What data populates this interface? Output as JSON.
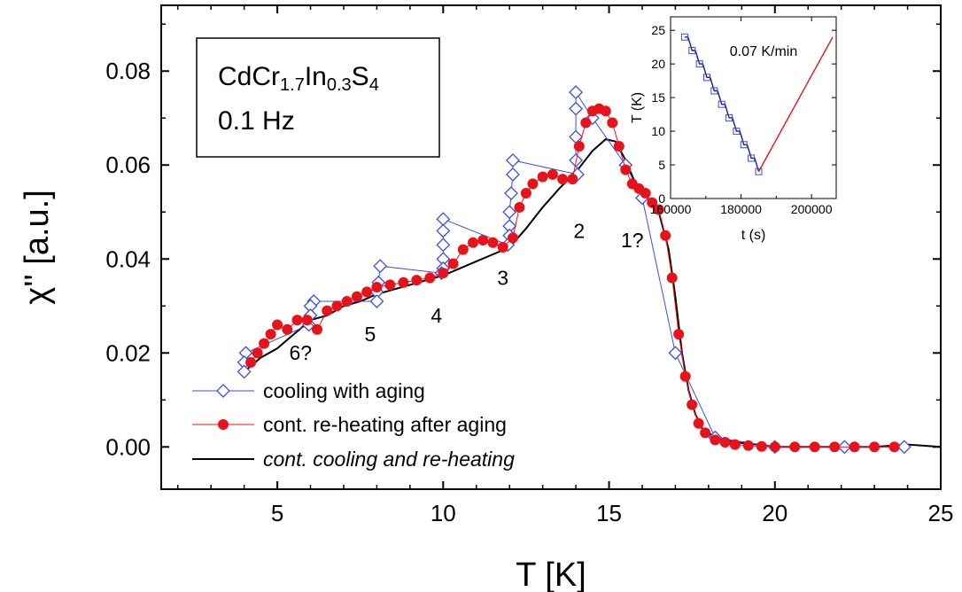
{
  "colors": {
    "cooling": "#3a4fe0",
    "reheating": "#e8121a",
    "continuous": "#000000",
    "inset_cooling": "#1a1a8a",
    "inset_heating": "#e8121a"
  },
  "sample_box": {
    "formula_parts": [
      [
        "CdCr",
        ""
      ],
      [
        "1.7",
        "sub"
      ],
      [
        "In",
        ""
      ],
      [
        "0.3",
        "sub"
      ],
      [
        "S",
        ""
      ],
      [
        "4",
        "sub"
      ]
    ],
    "frequency": "0.1 Hz"
  },
  "chart_data": {
    "type": "line",
    "xlabel": "T [K]",
    "ylabel": "χ'' [a.u.]",
    "xlim": [
      1.5,
      25
    ],
    "ylim": [
      -0.009,
      0.094
    ],
    "x_ticks": [
      5,
      10,
      15,
      20,
      25
    ],
    "y_ticks": [
      0.0,
      0.02,
      0.04,
      0.06,
      0.08
    ],
    "y_tick_labels": [
      "0.00",
      "0.02",
      "0.04",
      "0.06",
      "0.08"
    ],
    "legend_position": "bottom-left",
    "series": [
      {
        "name": "cooling with aging",
        "style": "line-open-diamond",
        "points": [
          [
            23.9,
            0.0
          ],
          [
            22.1,
            0.0
          ],
          [
            20.0,
            0.0
          ],
          [
            18.2,
            0.002
          ],
          [
            17.0,
            0.02
          ],
          [
            16.0,
            0.053
          ],
          [
            15.5,
            0.06
          ],
          [
            14.5,
            0.07
          ],
          [
            14.0,
            0.0755
          ],
          [
            14.0,
            0.072
          ],
          [
            14.0,
            0.066
          ],
          [
            14.0,
            0.061
          ],
          [
            14.05,
            0.058
          ],
          [
            12.1,
            0.061
          ],
          [
            12.1,
            0.058
          ],
          [
            12.05,
            0.054
          ],
          [
            12.0,
            0.05
          ],
          [
            12.0,
            0.047
          ],
          [
            12.0,
            0.045
          ],
          [
            11.95,
            0.043
          ],
          [
            10.0,
            0.0485
          ],
          [
            10.0,
            0.046
          ],
          [
            10.0,
            0.043
          ],
          [
            10.0,
            0.04
          ],
          [
            10.0,
            0.038
          ],
          [
            9.95,
            0.037
          ],
          [
            8.1,
            0.0385
          ],
          [
            8.05,
            0.035
          ],
          [
            8.0,
            0.033
          ],
          [
            8.0,
            0.031
          ],
          [
            6.1,
            0.031
          ],
          [
            6.0,
            0.03
          ],
          [
            6.0,
            0.028
          ],
          [
            5.95,
            0.026
          ],
          [
            4.05,
            0.02
          ],
          [
            4.0,
            0.018
          ],
          [
            4.0,
            0.016
          ]
        ]
      },
      {
        "name": "cont. re-heating after aging",
        "style": "line-filled-circle",
        "points": [
          [
            4.2,
            0.018
          ],
          [
            4.4,
            0.02
          ],
          [
            4.6,
            0.022
          ],
          [
            4.8,
            0.024
          ],
          [
            5.0,
            0.026
          ],
          [
            5.3,
            0.025
          ],
          [
            5.6,
            0.027
          ],
          [
            5.9,
            0.027
          ],
          [
            6.2,
            0.025
          ],
          [
            6.5,
            0.029
          ],
          [
            6.8,
            0.03
          ],
          [
            7.1,
            0.031
          ],
          [
            7.4,
            0.032
          ],
          [
            7.7,
            0.033
          ],
          [
            8.0,
            0.034
          ],
          [
            8.4,
            0.0345
          ],
          [
            8.8,
            0.035
          ],
          [
            9.2,
            0.0355
          ],
          [
            9.6,
            0.036
          ],
          [
            10.0,
            0.037
          ],
          [
            10.3,
            0.039
          ],
          [
            10.6,
            0.042
          ],
          [
            10.9,
            0.0435
          ],
          [
            11.2,
            0.044
          ],
          [
            11.5,
            0.0435
          ],
          [
            11.8,
            0.0425
          ],
          [
            12.1,
            0.0445
          ],
          [
            12.3,
            0.051
          ],
          [
            12.5,
            0.054
          ],
          [
            12.7,
            0.056
          ],
          [
            13.0,
            0.0575
          ],
          [
            13.3,
            0.058
          ],
          [
            13.6,
            0.057
          ],
          [
            13.9,
            0.057
          ],
          [
            14.1,
            0.064
          ],
          [
            14.3,
            0.069
          ],
          [
            14.5,
            0.0715
          ],
          [
            14.7,
            0.072
          ],
          [
            14.9,
            0.0715
          ],
          [
            15.1,
            0.069
          ],
          [
            15.3,
            0.064
          ],
          [
            15.5,
            0.059
          ],
          [
            15.7,
            0.056
          ],
          [
            15.9,
            0.055
          ],
          [
            16.1,
            0.054
          ],
          [
            16.3,
            0.052
          ],
          [
            16.5,
            0.0505
          ],
          [
            16.7,
            0.045
          ],
          [
            16.9,
            0.036
          ],
          [
            17.1,
            0.024
          ],
          [
            17.3,
            0.015
          ],
          [
            17.5,
            0.009
          ],
          [
            17.7,
            0.005
          ],
          [
            17.9,
            0.003
          ],
          [
            18.2,
            0.0015
          ],
          [
            18.5,
            0.001
          ],
          [
            18.8,
            0.0005
          ],
          [
            19.2,
            0.0003
          ],
          [
            19.6,
            0.0001
          ],
          [
            20.0,
            0.0
          ],
          [
            20.6,
            0.0
          ],
          [
            21.2,
            0.0
          ],
          [
            21.8,
            0.0
          ],
          [
            22.4,
            0.0
          ],
          [
            23.0,
            0.0
          ],
          [
            23.6,
            0.0
          ]
        ]
      },
      {
        "name": "cont. cooling and re-heating",
        "style": "line",
        "points": [
          [
            4.0,
            0.016
          ],
          [
            4.5,
            0.019
          ],
          [
            5.0,
            0.021
          ],
          [
            5.5,
            0.024
          ],
          [
            6.0,
            0.027
          ],
          [
            6.5,
            0.028
          ],
          [
            7.0,
            0.03
          ],
          [
            7.5,
            0.031
          ],
          [
            8.0,
            0.0325
          ],
          [
            8.5,
            0.0335
          ],
          [
            9.0,
            0.0345
          ],
          [
            9.5,
            0.0355
          ],
          [
            10.0,
            0.0365
          ],
          [
            10.5,
            0.038
          ],
          [
            11.0,
            0.0395
          ],
          [
            11.5,
            0.041
          ],
          [
            12.0,
            0.0425
          ],
          [
            12.5,
            0.0465
          ],
          [
            13.0,
            0.051
          ],
          [
            13.5,
            0.055
          ],
          [
            14.0,
            0.0585
          ],
          [
            14.5,
            0.063
          ],
          [
            14.9,
            0.0655
          ],
          [
            15.2,
            0.065
          ],
          [
            15.5,
            0.061
          ],
          [
            15.8,
            0.056
          ],
          [
            16.2,
            0.0525
          ],
          [
            16.5,
            0.05
          ],
          [
            16.8,
            0.042
          ],
          [
            17.0,
            0.032
          ],
          [
            17.2,
            0.02
          ],
          [
            17.4,
            0.012
          ],
          [
            17.6,
            0.007
          ],
          [
            17.8,
            0.004
          ],
          [
            18.2,
            0.002
          ],
          [
            18.8,
            0.001
          ],
          [
            19.5,
            0.0005
          ],
          [
            20.0,
            0.0
          ],
          [
            21.0,
            0.0
          ],
          [
            22.0,
            0.0
          ],
          [
            23.0,
            0.0
          ],
          [
            24.0,
            0.0005
          ],
          [
            25.0,
            0.0
          ]
        ]
      }
    ],
    "annotations": [
      {
        "text": "1?",
        "x": 15.7,
        "y": 0.0425
      },
      {
        "text": "2",
        "x": 14.1,
        "y": 0.0445
      },
      {
        "text": "3",
        "x": 11.8,
        "y": 0.0345
      },
      {
        "text": "4",
        "x": 9.8,
        "y": 0.0265
      },
      {
        "text": "5",
        "x": 7.8,
        "y": 0.0225
      },
      {
        "text": "6?",
        "x": 5.7,
        "y": 0.0185
      }
    ],
    "inset": {
      "type": "line",
      "title": "0.07 K/min",
      "xlabel": "t (s)",
      "ylabel": "T (K)",
      "xlim": [
        160000,
        207000
      ],
      "ylim": [
        0,
        27
      ],
      "x_ticks": [
        160000,
        180000,
        200000
      ],
      "y_ticks": [
        0,
        5,
        10,
        15,
        20,
        25
      ],
      "series": [
        {
          "name": "cooling",
          "style": "staircase-open-square",
          "points": [
            [
              164000,
              24
            ],
            [
              185000,
              4
            ]
          ]
        },
        {
          "name": "heating",
          "style": "line",
          "points": [
            [
              185000,
              4
            ],
            [
              206000,
              24
            ]
          ]
        }
      ]
    }
  }
}
